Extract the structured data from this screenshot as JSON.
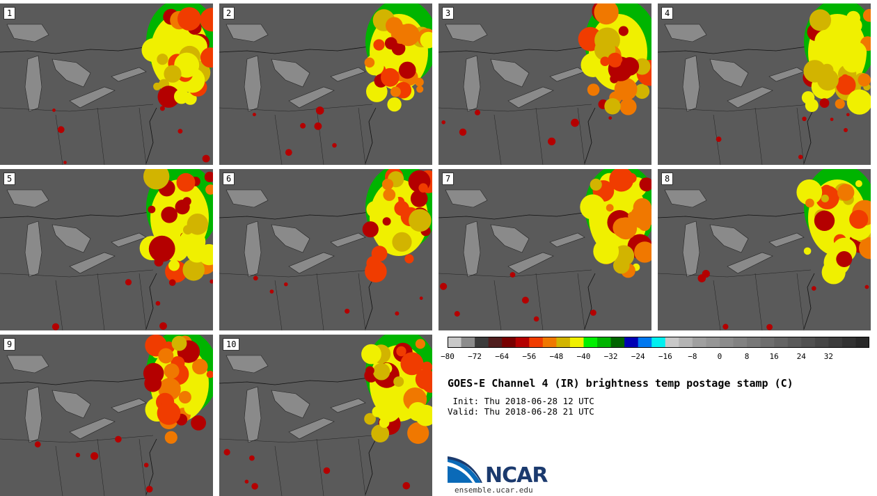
{
  "panels": [
    {
      "label": "1"
    },
    {
      "label": "2"
    },
    {
      "label": "3"
    },
    {
      "label": "4"
    },
    {
      "label": "5"
    },
    {
      "label": "6"
    },
    {
      "label": "7"
    },
    {
      "label": "8"
    },
    {
      "label": "9"
    },
    {
      "label": "10"
    }
  ],
  "colorbar": {
    "colors": [
      "#c8c8c8",
      "#8c8c8c",
      "#3c3c3c",
      "#501e1e",
      "#780000",
      "#b40000",
      "#f03c00",
      "#f07800",
      "#d2b400",
      "#f0f000",
      "#00f000",
      "#00b400",
      "#006400",
      "#0000b4",
      "#0078f0",
      "#00f0f0",
      "#c8c8c8",
      "#b4b4b4",
      "#a0a0a0",
      "#969696",
      "#8c8c8c",
      "#828282",
      "#787878",
      "#6e6e6e",
      "#646464",
      "#5a5a5a",
      "#505050",
      "#464646",
      "#3c3c3c",
      "#323232",
      "#282828"
    ],
    "min": -80,
    "step": 4,
    "tick_labels": [
      "−80",
      "−72",
      "−64",
      "−56",
      "−48",
      "−40",
      "−32",
      "−24",
      "−16",
      "−8",
      "0",
      "8",
      "16",
      "24",
      "32"
    ],
    "tick_values": [
      -80,
      -72,
      -64,
      -56,
      -48,
      -40,
      -32,
      -24,
      -16,
      -8,
      0,
      8,
      16,
      24,
      32
    ]
  },
  "title": "GOES-E Channel 4 (IR) brightness temp postage stamp (C)",
  "init": " Init: Thu 2018-06-28 12 UTC",
  "valid": "Valid: Thu 2018-06-28 21 UTC",
  "logo": {
    "text": "NCAR",
    "site": "ensemble.ucar.edu"
  }
}
